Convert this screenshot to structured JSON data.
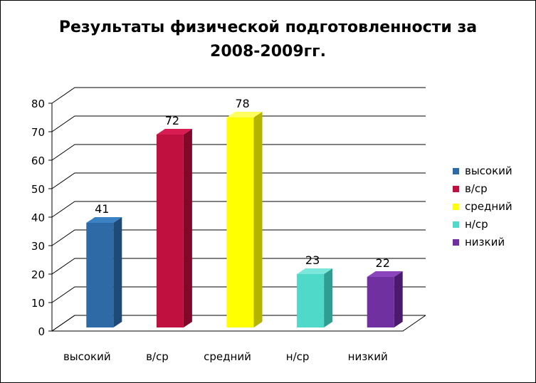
{
  "chart_data": {
    "type": "bar",
    "title": "Результаты физической подготовленности за 2008-2009гг.",
    "title_lines": [
      "Результаты физической подготовленности за",
      "2008-2009гг."
    ],
    "categories": [
      "высокий",
      "в/ср",
      "средний",
      "н/ср",
      "низкий"
    ],
    "values": [
      41,
      72,
      78,
      23,
      22
    ],
    "colors": [
      "#2e6ba6",
      "#c01040",
      "#ffff00",
      "#4fd9c9",
      "#7030a0"
    ],
    "side_colors": [
      "#1d4a76",
      "#82082a",
      "#b3b300",
      "#2f9e92",
      "#4a1a6e"
    ],
    "top_colors": [
      "#3a82c4",
      "#d81d52",
      "#ffff60",
      "#7be6da",
      "#8a45bd"
    ],
    "ylim": [
      0,
      80
    ],
    "yticks": [
      0,
      10,
      20,
      30,
      40,
      50,
      60,
      70,
      80
    ],
    "data_labels": [
      "41",
      "72",
      "78",
      "23",
      "22"
    ],
    "grid": true,
    "legend_position": "right",
    "legend": [
      "высокий",
      "в/ср",
      "средний",
      "н/ср",
      "низкий"
    ]
  }
}
